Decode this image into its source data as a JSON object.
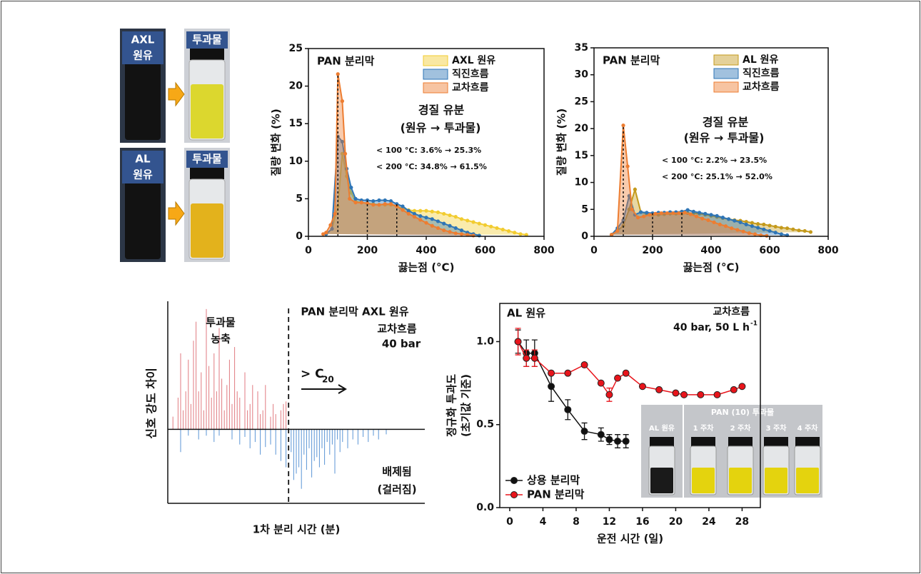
{
  "photos": [
    {
      "crude": [
        "AXL",
        "원유"
      ],
      "permeate": "투과물"
    },
    {
      "crude": [
        "AL",
        "원유"
      ],
      "permeate": "투과물"
    }
  ],
  "chart_data": [
    {
      "type": "area",
      "title": "PAN 분리막",
      "x_label": "끓는점 (°C)",
      "y_label": "질량 변화 (%)",
      "xlim": [
        0,
        800
      ],
      "xticks": [
        0,
        200,
        400,
        600,
        800
      ],
      "ylim": [
        0,
        25
      ],
      "yticks": [
        0,
        5,
        10,
        15,
        20,
        25
      ],
      "annotations": [
        "경질 유분",
        "(원유 → 투과물)",
        "< 100 °C: 3.6% → 25.3%",
        "< 200 °C: 34.8% → 61.5%"
      ],
      "marker_lines": [
        100,
        200,
        300
      ],
      "series": [
        {
          "name": "AXL 원유",
          "color": "#f2cc30",
          "x": [
            60,
            80,
            100,
            115,
            130,
            145,
            160,
            180,
            200,
            220,
            240,
            260,
            280,
            300,
            320,
            340,
            360,
            380,
            400,
            420,
            440,
            460,
            480,
            500,
            520,
            540,
            560,
            580,
            600,
            620,
            640,
            660,
            680,
            700,
            720,
            740
          ],
          "values": [
            0.3,
            1,
            4,
            11,
            8,
            5.8,
            4.7,
            4.5,
            4.4,
            4.3,
            4.2,
            4.2,
            4.2,
            4,
            3.7,
            3.5,
            3.4,
            3.4,
            3.4,
            3.3,
            3.2,
            3,
            2.8,
            2.6,
            2.3,
            2.1,
            1.9,
            1.7,
            1.5,
            1.3,
            1.1,
            0.9,
            0.7,
            0.5,
            0.3,
            0.2
          ]
        },
        {
          "name": "직진흐름",
          "color": "#2e75b6",
          "x": [
            60,
            80,
            100,
            115,
            130,
            145,
            160,
            180,
            200,
            220,
            240,
            260,
            280,
            300,
            320,
            340,
            360,
            380,
            400,
            420,
            440,
            460,
            480,
            500,
            520,
            540,
            560,
            580
          ],
          "values": [
            0.3,
            1,
            13.3,
            12.6,
            9,
            6.5,
            5,
            4.8,
            4.8,
            4.7,
            4.8,
            4.8,
            4.7,
            4.3,
            4,
            3.4,
            3,
            2.7,
            2.5,
            2.3,
            2,
            1.7,
            1.4,
            1.1,
            0.8,
            0.5,
            0.3,
            0.1
          ]
        },
        {
          "name": "교차흐름",
          "color": "#ed7d31",
          "x": [
            50,
            60,
            75,
            90,
            100,
            115,
            125,
            140,
            160,
            180,
            200,
            220,
            240,
            260,
            280,
            300,
            320,
            340,
            360,
            380,
            400,
            420,
            440,
            460,
            480,
            500,
            520,
            540,
            560
          ],
          "values": [
            0.3,
            0.5,
            1.5,
            3,
            21.6,
            18,
            11,
            5,
            4.5,
            4.5,
            4.4,
            4.2,
            4.2,
            4.3,
            4.3,
            4,
            3.5,
            3,
            2.6,
            2.2,
            1.8,
            1.4,
            1.1,
            0.8,
            0.6,
            0.4,
            0.3,
            0.2,
            0.1
          ]
        }
      ]
    },
    {
      "type": "area",
      "title": "PAN 분리막",
      "x_label": "끓는점 (°C)",
      "y_label": "질량 변화 (%)",
      "xlim": [
        0,
        800
      ],
      "xticks": [
        0,
        200,
        400,
        600,
        800
      ],
      "ylim": [
        0,
        35
      ],
      "yticks": [
        0,
        5,
        10,
        15,
        20,
        25,
        30,
        35
      ],
      "annotations": [
        "경질 유분",
        "(원유 → 투과물)",
        "< 100 °C: 2.2% → 23.5%",
        "< 200 °C: 25.1% → 52.0%"
      ],
      "marker_lines": [
        100,
        200,
        300
      ],
      "series": [
        {
          "name": "AL 원유",
          "color": "#c49a1c",
          "x": [
            60,
            80,
            100,
            120,
            140,
            160,
            180,
            200,
            220,
            240,
            260,
            280,
            300,
            320,
            340,
            360,
            380,
            400,
            420,
            440,
            460,
            480,
            500,
            520,
            540,
            560,
            580,
            600,
            620,
            640,
            660,
            680,
            700,
            720,
            740
          ],
          "values": [
            0.3,
            1,
            2,
            5,
            8.7,
            4.5,
            4.2,
            4,
            4,
            4.1,
            4.2,
            4.2,
            4.2,
            4.3,
            4.3,
            4.2,
            4,
            3.8,
            3.6,
            3.4,
            3.2,
            3,
            2.9,
            2.7,
            2.5,
            2.3,
            2.2,
            2,
            1.8,
            1.6,
            1.5,
            1.3,
            1.1,
            1,
            0.8
          ]
        },
        {
          "name": "직진흐름",
          "color": "#2e75b6",
          "x": [
            60,
            80,
            100,
            120,
            140,
            160,
            180,
            200,
            220,
            240,
            260,
            280,
            300,
            320,
            340,
            360,
            380,
            400,
            420,
            440,
            460,
            480,
            500,
            520,
            540,
            560,
            580,
            600,
            620,
            640,
            660
          ],
          "values": [
            0.3,
            1.5,
            3,
            7.5,
            4,
            4.5,
            4.4,
            4.3,
            4.4,
            4.4,
            4.5,
            4.5,
            4.6,
            4.9,
            4.6,
            4.4,
            4.2,
            4,
            3.8,
            3.5,
            3.2,
            2.9,
            2.6,
            2.2,
            1.9,
            1.6,
            1.3,
            1,
            0.7,
            0.4,
            0.2
          ]
        },
        {
          "name": "교차흐름",
          "color": "#ed7d31",
          "x": [
            60,
            80,
            100,
            115,
            130,
            150,
            170,
            190,
            210,
            230,
            250,
            270,
            290,
            310,
            330,
            350,
            370,
            390,
            410,
            430,
            450,
            470,
            490,
            510,
            530,
            550,
            570,
            590
          ],
          "values": [
            0.3,
            1,
            20.6,
            13,
            5,
            3.5,
            3.7,
            4,
            4.2,
            4.3,
            4.3,
            4.3,
            4.3,
            4.4,
            4.1,
            3.7,
            3.3,
            3,
            2.6,
            2.2,
            1.9,
            1.5,
            1.2,
            0.9,
            0.6,
            0.4,
            0.2,
            0.1
          ]
        }
      ]
    },
    {
      "type": "stem",
      "x_label": "1차 분리 시간 (분)",
      "y_label": "신호 강도 차이",
      "xlim": [
        0,
        100
      ],
      "ylim": [
        -0.5,
        1
      ],
      "divider": 47,
      "annotations": [
        "투과물",
        "농축",
        "PAN 분리막 AXL 원유",
        "교차흐름",
        "40 bar",
        "배제됨",
        "(걸러짐)"
      ],
      "arrow_label": "> C",
      "arrow_label_sub": "20",
      "series": [
        {
          "color": "#e07a80",
          "x": [
            2,
            4,
            5,
            6,
            7,
            8,
            9,
            10,
            11,
            12,
            13,
            14,
            15,
            16,
            17,
            18,
            19,
            20,
            21,
            22,
            23,
            24,
            25,
            26,
            27,
            28,
            30,
            31,
            32,
            33,
            35,
            36,
            37,
            38,
            40,
            41,
            42,
            44,
            45,
            46
          ],
          "values": [
            0.1,
            0.25,
            0.6,
            0.15,
            0.3,
            0.55,
            0.2,
            0.7,
            0.85,
            0.3,
            0.45,
            0.15,
            0.95,
            0.5,
            0.25,
            0.6,
            0.3,
            0.8,
            0.4,
            0.15,
            0.35,
            0.55,
            0.2,
            0.65,
            0.3,
            0.25,
            0.45,
            0.15,
            0.2,
            0.35,
            0.3,
            0.12,
            0.15,
            0.35,
            0.1,
            0.2,
            0.12,
            0.15,
            0.2,
            0.22
          ]
        },
        {
          "color": "#5b95d5",
          "x": [
            5,
            8,
            12,
            15,
            18,
            20,
            25,
            28,
            30,
            32,
            34,
            36,
            38,
            40,
            42,
            44,
            46,
            48,
            49,
            50,
            51,
            52,
            53,
            54,
            55,
            56,
            57,
            58,
            59,
            60,
            61,
            62,
            63,
            64,
            65,
            66,
            67,
            68,
            70,
            72,
            74,
            76,
            78,
            80,
            82,
            85
          ],
          "values": [
            -0.18,
            -0.05,
            -0.08,
            -0.05,
            -0.1,
            -0.05,
            -0.08,
            -0.12,
            -0.06,
            -0.15,
            -0.1,
            -0.2,
            -0.14,
            -0.12,
            -0.2,
            -0.25,
            -0.3,
            -0.18,
            -0.4,
            -0.35,
            -0.3,
            -0.47,
            -0.2,
            -0.32,
            -0.15,
            -0.38,
            -0.25,
            -0.22,
            -0.3,
            -0.15,
            -0.28,
            -0.1,
            -0.2,
            -0.12,
            -0.35,
            -0.08,
            -0.18,
            -0.1,
            -0.15,
            -0.08,
            -0.12,
            -0.06,
            -0.1,
            -0.05,
            -0.08,
            -0.04
          ]
        }
      ]
    },
    {
      "type": "line",
      "title": "AL 원유",
      "x_label": "운전 시간 (일)",
      "y_label": [
        "정규화 투과도",
        "(초기값 기준)"
      ],
      "xlim": [
        -1.2,
        30.2
      ],
      "xticks": [
        0,
        4,
        8,
        12,
        16,
        20,
        24,
        28
      ],
      "ylim": [
        0,
        1.23
      ],
      "yticks": [
        {
          "value": 0,
          "label": "0.0"
        },
        {
          "value": 0.5,
          "label": "0.5"
        },
        {
          "value": 1,
          "label": "1.0"
        }
      ],
      "annotations": [
        "교차흐름",
        "40 bar, 50 L h"
      ],
      "annotation_sup": "-1",
      "inset": {
        "title": "PAN (10) 투과물",
        "labels": [
          "AL 원유",
          "1 주차",
          "2 주차",
          "3 주차",
          "4 주차"
        ]
      },
      "series": [
        {
          "name": "상용 분리막",
          "color": "#111111",
          "x": [
            1,
            2,
            3,
            5,
            7,
            9,
            11,
            12,
            13,
            14
          ],
          "values": [
            1.0,
            0.93,
            0.93,
            0.73,
            0.59,
            0.46,
            0.44,
            0.41,
            0.4,
            0.4
          ],
          "errors": [
            0.07,
            0.08,
            0.08,
            0.09,
            0.06,
            0.05,
            0.04,
            0.03,
            0.04,
            0.04
          ]
        },
        {
          "name": "PAN 분리막",
          "color": "#e8141b",
          "x": [
            1,
            2,
            3,
            5,
            7,
            9,
            11,
            12,
            13,
            14,
            16,
            18,
            20,
            21,
            23,
            25,
            27,
            28
          ],
          "values": [
            1.0,
            0.9,
            0.9,
            0.81,
            0.81,
            0.86,
            0.75,
            0.68,
            0.78,
            0.81,
            0.73,
            0.71,
            0.69,
            0.68,
            0.68,
            0.68,
            0.71,
            0.73
          ],
          "errors": [
            0.08,
            0.05,
            0.05,
            null,
            null,
            null,
            null,
            0.04,
            null,
            null,
            null,
            null,
            null,
            null,
            null,
            null,
            null,
            null
          ]
        }
      ]
    }
  ]
}
